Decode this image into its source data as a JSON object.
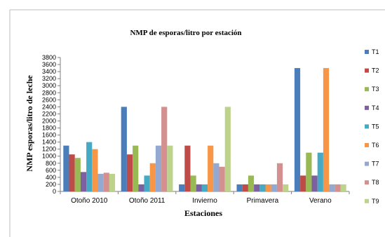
{
  "chart_data": {
    "type": "bar",
    "title": "NMP de esporas/litro por estación",
    "xlabel": "Estaciones",
    "ylabel": "NMP esporas/litro de leche",
    "ylim": [
      0,
      3800
    ],
    "ytick_step": 200,
    "grid": false,
    "legend_position": "right",
    "categories": [
      "Otoño 2010",
      "Otoño 2011",
      "Invierno",
      "Primavera",
      "Verano"
    ],
    "series": [
      {
        "name": "T1",
        "color": "#4a7ebb",
        "values": [
          1300,
          2400,
          200,
          200,
          3500
        ]
      },
      {
        "name": "T2",
        "color": "#be4b48",
        "values": [
          1050,
          1050,
          1300,
          200,
          450
        ]
      },
      {
        "name": "T3",
        "color": "#98b954",
        "values": [
          950,
          1300,
          450,
          450,
          1100
        ]
      },
      {
        "name": "T4",
        "color": "#7d60a0",
        "values": [
          550,
          200,
          200,
          200,
          450
        ]
      },
      {
        "name": "T5",
        "color": "#46aac5",
        "values": [
          1400,
          450,
          200,
          200,
          1100
        ]
      },
      {
        "name": "T6",
        "color": "#f79646",
        "values": [
          1200,
          800,
          1300,
          200,
          3500
        ]
      },
      {
        "name": "T7",
        "color": "#93a9d0",
        "values": [
          500,
          1300,
          800,
          200,
          200
        ]
      },
      {
        "name": "T8",
        "color": "#d3908f",
        "values": [
          530,
          2400,
          700,
          800,
          200
        ]
      },
      {
        "name": "T9",
        "color": "#bdd38c",
        "values": [
          500,
          1300,
          2400,
          200,
          200
        ]
      }
    ]
  }
}
